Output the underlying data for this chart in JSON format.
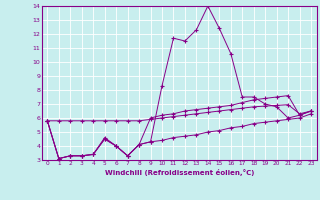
{
  "xlabel": "Windchill (Refroidissement éolien,°C)",
  "background_color": "#c8eeee",
  "line_color": "#880088",
  "xlim": [
    -0.5,
    23.5
  ],
  "ylim": [
    3,
    14
  ],
  "xticks": [
    0,
    1,
    2,
    3,
    4,
    5,
    6,
    7,
    8,
    9,
    10,
    11,
    12,
    13,
    14,
    15,
    16,
    17,
    18,
    19,
    20,
    21,
    22,
    23
  ],
  "yticks": [
    3,
    4,
    5,
    6,
    7,
    8,
    9,
    10,
    11,
    12,
    13,
    14
  ],
  "series": [
    {
      "x": [
        0,
        1,
        2,
        3,
        4,
        5,
        6,
        7,
        8,
        9,
        10,
        11,
        12,
        13,
        14,
        15,
        16,
        17,
        18,
        19,
        20,
        21,
        22,
        23
      ],
      "y": [
        5.8,
        5.8,
        5.8,
        5.8,
        5.8,
        5.8,
        5.8,
        5.8,
        5.8,
        5.9,
        6.0,
        6.1,
        6.2,
        6.3,
        6.4,
        6.5,
        6.6,
        6.7,
        6.8,
        6.85,
        6.9,
        6.95,
        6.3,
        6.5
      ]
    },
    {
      "x": [
        0,
        1,
        2,
        3,
        4,
        5,
        6,
        7,
        8,
        9,
        10,
        11,
        12,
        13,
        14,
        15,
        16,
        17,
        18,
        19,
        20,
        21,
        22,
        23
      ],
      "y": [
        5.8,
        3.1,
        3.3,
        3.3,
        3.4,
        4.6,
        4.0,
        3.3,
        4.1,
        4.3,
        4.4,
        4.6,
        4.7,
        4.8,
        5.0,
        5.1,
        5.3,
        5.4,
        5.6,
        5.7,
        5.8,
        5.9,
        6.0,
        6.3
      ]
    },
    {
      "x": [
        0,
        1,
        2,
        3,
        4,
        5,
        6,
        7,
        8,
        9,
        10,
        11,
        12,
        13,
        14,
        15,
        16,
        17,
        18,
        19,
        20,
        21,
        22,
        23
      ],
      "y": [
        5.8,
        3.1,
        3.3,
        3.3,
        3.4,
        4.5,
        4.0,
        3.3,
        4.1,
        4.3,
        8.3,
        11.7,
        11.5,
        12.3,
        14.0,
        12.4,
        10.6,
        7.5,
        7.5,
        7.0,
        6.8,
        6.0,
        6.2,
        6.5
      ]
    },
    {
      "x": [
        0,
        1,
        2,
        3,
        4,
        5,
        6,
        7,
        8,
        9,
        10,
        11,
        12,
        13,
        14,
        15,
        16,
        17,
        18,
        19,
        20,
        21,
        22,
        23
      ],
      "y": [
        5.8,
        3.1,
        3.3,
        3.3,
        3.4,
        4.5,
        4.0,
        3.3,
        4.1,
        6.0,
        6.2,
        6.3,
        6.5,
        6.6,
        6.7,
        6.8,
        6.9,
        7.1,
        7.3,
        7.4,
        7.5,
        7.6,
        6.2,
        6.5
      ]
    }
  ]
}
